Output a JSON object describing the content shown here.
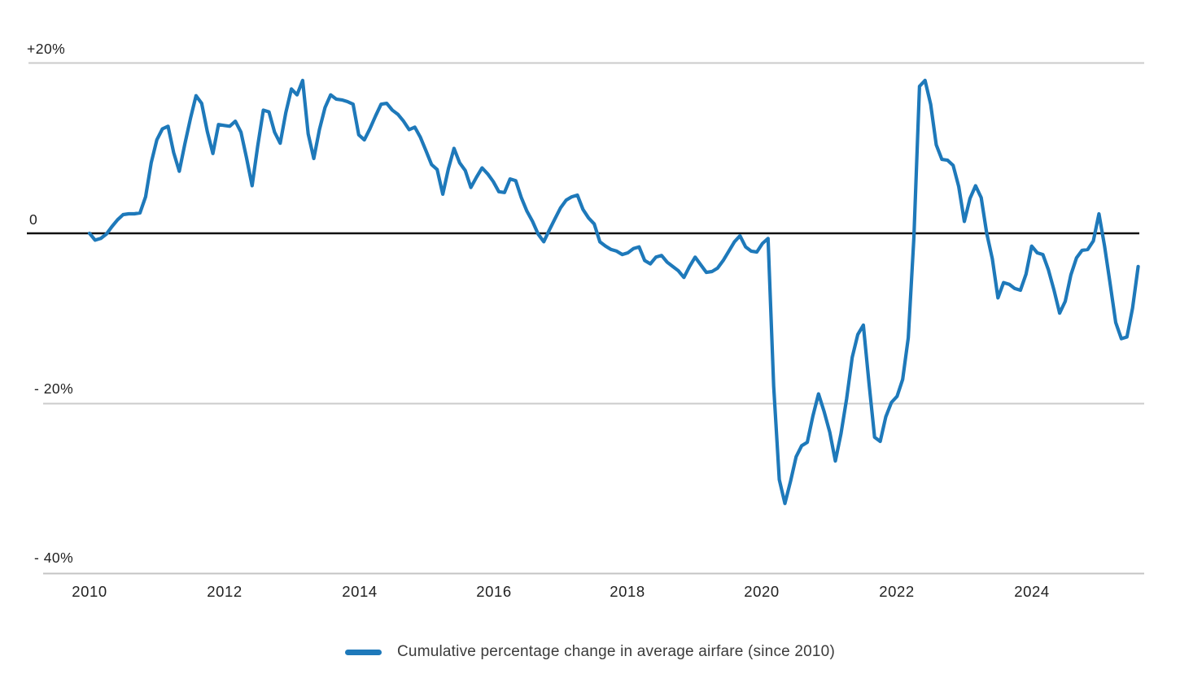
{
  "chart_data": {
    "type": "line",
    "title": "",
    "xlabel": "",
    "ylabel": "",
    "x_range": [
      "2010-01",
      "2025-08"
    ],
    "frequency": "monthly",
    "ylim": [
      -42,
      22
    ],
    "grid": "horizontal gridlines at +20%, -20%, -40% (light gray) and a solid black zero line",
    "legend_position": "bottom-center",
    "series": [
      {
        "name": "Cumulative percentage change in average airfare (since 2010)",
        "color": "#1e79ba",
        "unit": "%",
        "start": "2010-01",
        "values": [
          0.0,
          -0.8,
          -0.6,
          -0.1,
          0.8,
          1.6,
          2.2,
          2.3,
          2.3,
          2.4,
          4.3,
          8.3,
          11.0,
          12.3,
          12.6,
          9.5,
          7.3,
          10.5,
          13.5,
          16.2,
          15.3,
          12.0,
          9.4,
          12.8,
          12.7,
          12.6,
          13.2,
          11.9,
          8.9,
          5.6,
          10.3,
          14.5,
          14.3,
          11.9,
          10.6,
          14.2,
          17.0,
          16.3,
          18.0,
          11.7,
          8.8,
          12.2,
          14.8,
          16.3,
          15.8,
          15.7,
          15.5,
          15.2,
          11.6,
          11.0,
          12.3,
          13.8,
          15.2,
          15.3,
          14.5,
          14.0,
          13.2,
          12.2,
          12.5,
          11.3,
          9.7,
          8.1,
          7.5,
          4.6,
          7.6,
          10.0,
          8.3,
          7.4,
          5.4,
          6.6,
          7.7,
          7.0,
          6.1,
          4.9,
          4.8,
          6.4,
          6.2,
          4.2,
          2.6,
          1.4,
          -0.1,
          -1.0,
          0.4,
          1.7,
          3.0,
          3.9,
          4.3,
          4.5,
          2.8,
          1.8,
          1.1,
          -1.0,
          -1.5,
          -1.9,
          -2.1,
          -2.5,
          -2.3,
          -1.8,
          -1.6,
          -3.2,
          -3.6,
          -2.8,
          -2.6,
          -3.4,
          -3.9,
          -4.4,
          -5.2,
          -3.9,
          -2.8,
          -3.7,
          -4.6,
          -4.5,
          -4.1,
          -3.2,
          -2.1,
          -1.0,
          -0.3,
          -1.6,
          -2.1,
          -2.2,
          -1.2,
          -0.6,
          -18.0,
          -29.0,
          -31.8,
          -29.2,
          -26.3,
          -25.0,
          -24.6,
          -21.5,
          -18.9,
          -21.0,
          -23.4,
          -26.8,
          -23.6,
          -19.5,
          -14.6,
          -11.9,
          -10.8,
          -17.6,
          -24.0,
          -24.5,
          -21.6,
          -19.9,
          -19.2,
          -17.2,
          -12.3,
          -0.5,
          17.3,
          18.0,
          15.2,
          10.4,
          8.7,
          8.6,
          8.0,
          5.5,
          1.4,
          4.1,
          5.6,
          4.2,
          0.0,
          -3.0,
          -7.6,
          -5.8,
          -6.0,
          -6.5,
          -6.7,
          -4.8,
          -1.5,
          -2.3,
          -2.5,
          -4.3,
          -6.7,
          -9.4,
          -8.0,
          -4.9,
          -2.9,
          -2.0,
          -1.9,
          -0.9,
          2.3,
          -1.5,
          -5.9,
          -10.5,
          -12.4,
          -12.2,
          -8.8,
          -3.9
        ]
      }
    ]
  },
  "axes": {
    "y_labels": [
      {
        "text": "+20%",
        "value": 20
      },
      {
        "text": "0",
        "value": 0
      },
      {
        "text": "- 20%",
        "value": -20
      },
      {
        "text": "- 40%",
        "value": -40
      }
    ],
    "x_labels": [
      "2010",
      "2012",
      "2014",
      "2016",
      "2018",
      "2020",
      "2022",
      "2024"
    ]
  },
  "legend": {
    "label": "Cumulative percentage change in average airfare (since 2010)",
    "swatch_color": "#1e79ba"
  },
  "colors": {
    "line": "#1e79ba",
    "gridline": "#cbcbcb",
    "zero_line": "#111111",
    "text": "#1f1f1f"
  }
}
